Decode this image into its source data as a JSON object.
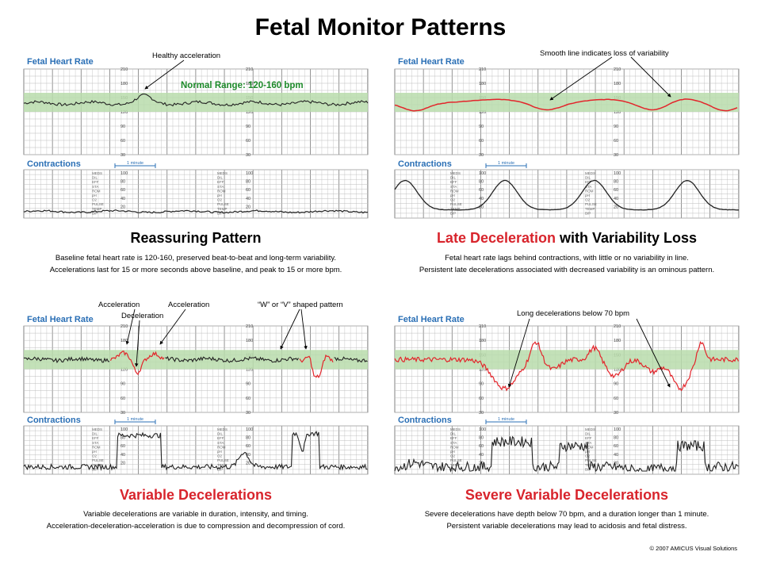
{
  "title": "Fetal Monitor Patterns",
  "colors": {
    "heading_red": "#d8242c",
    "section_blue": "#2a6fb5",
    "normal_band": "#b9dcab",
    "normal_text": "#1d8a2a",
    "trace_red": "#e3252b",
    "trace_black": "#222222"
  },
  "labels": {
    "fhr": "Fetal Heart Rate",
    "contractions": "Contractions",
    "one_minute": "1 minute",
    "fhr_scale": [
      "210",
      "180",
      "150",
      "120",
      "90",
      "60",
      "30"
    ],
    "uc_scale": [
      "100",
      "80",
      "60",
      "40",
      "20"
    ],
    "side_labels": [
      "MEDS",
      "DIL",
      "EFF",
      "STA",
      "ROM",
      "pH",
      "O2",
      "PULSE",
      "TEMP",
      "B/P"
    ]
  },
  "panels": [
    {
      "id": "reassuring",
      "heading_plain": "Reassuring Pattern",
      "heading_red": "",
      "heading_rest": "",
      "desc1": "Baseline fetal heart rate is 120-160, preserved beat-to-beat and long-term variability.",
      "desc2": "Accelerations last for 15 or more seconds above baseline, and peak to 15 or more bpm.",
      "normal_range": "Normal Range: 120-160 bpm",
      "annotations": [
        "Healthy acceleration"
      ]
    },
    {
      "id": "late",
      "heading_plain": "",
      "heading_red": "Late Deceleration",
      "heading_rest": " with Variability Loss",
      "desc1": "Fetal heart rate lags behind contractions, with little or no variability in line.",
      "desc2": "Persistent late decelerations associated with decreased variability is an ominous pattern.",
      "annotations": [
        "Smooth line indicates loss of variability"
      ]
    },
    {
      "id": "variable",
      "heading_plain": "",
      "heading_red": "Variable Decelerations",
      "heading_rest": "",
      "desc1": "Variable decelerations are variable in duration, intensity, and timing.",
      "desc2": "Acceleration-deceleration-acceleration is due to compression and decompression of cord.",
      "annotations": [
        "Acceleration",
        "Deceleration",
        "Acceleration",
        "“W” or “V” shaped pattern"
      ]
    },
    {
      "id": "severe",
      "heading_plain": "",
      "heading_red": "Severe Variable Decelerations",
      "heading_rest": "",
      "desc1": "Severe decelerations have depth below 70 bpm, and a duration longer than 1 minute.",
      "desc2": "Persistent variable decelerations may lead to acidosis and fetal distress.",
      "annotations": [
        "Long decelerations below 70 bpm"
      ]
    }
  ],
  "copyright": "© 2007 AMICUS Visual Solutions"
}
